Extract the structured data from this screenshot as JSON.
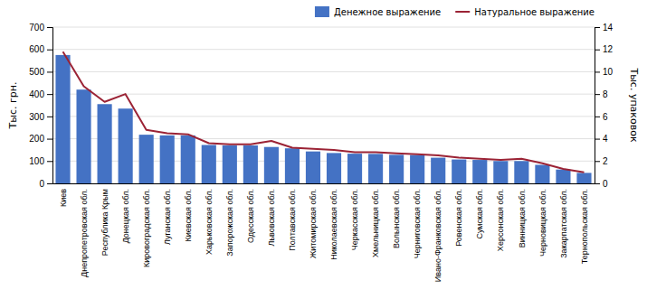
{
  "chart_data": {
    "type": "bar",
    "categories": [
      "Киев",
      "Днепропетровская обл.",
      "Республика Крым",
      "Донецкая обл.",
      "Кировоградская обл.",
      "Луганская обл.",
      "Киевская обл.",
      "Харьковская обл.",
      "Запорожская обл.",
      "Одесская обл.",
      "Львовская обл.",
      "Полтавская обл.",
      "Житомирская обл.",
      "Николаевская обл.",
      "Черкасская обл.",
      "Хмельницкая обл.",
      "Волынская обл.",
      "Черниговская обл.",
      "Ивано-Франковская обл.",
      "Ровенская обл.",
      "Сумская обл.",
      "Херсонская обл.",
      "Винницкая обл.",
      "Черновицкая обл.",
      "Закарпатская обл.",
      "Тернопольская обл."
    ],
    "series": [
      {
        "name": "Денежное выражение",
        "type": "bar",
        "color": "#4472c4",
        "values": [
          575,
          420,
          355,
          335,
          218,
          215,
          215,
          172,
          170,
          170,
          163,
          157,
          143,
          136,
          133,
          132,
          128,
          127,
          115,
          107,
          105,
          100,
          100,
          83,
          62,
          47
        ]
      },
      {
        "name": "Натуральное выражение",
        "type": "line",
        "color": "#9b2335",
        "axis": "y2",
        "values": [
          11.8,
          8.7,
          7.3,
          8.0,
          4.8,
          4.5,
          4.4,
          3.6,
          3.5,
          3.5,
          3.8,
          3.2,
          3.1,
          3.0,
          2.8,
          2.8,
          2.7,
          2.6,
          2.5,
          2.3,
          2.2,
          2.1,
          2.2,
          1.8,
          1.3,
          1.0
        ]
      }
    ],
    "ylabel": "Тыс. грн.",
    "y2label": "Тыс. упаковок",
    "ylim": [
      0,
      700
    ],
    "yticks": [
      0,
      100,
      200,
      300,
      400,
      500,
      600,
      700
    ],
    "y2lim": [
      0,
      14
    ],
    "y2ticks": [
      0,
      2,
      4,
      6,
      8,
      10,
      12,
      14
    ],
    "grid": true,
    "legend": "upper-right"
  }
}
